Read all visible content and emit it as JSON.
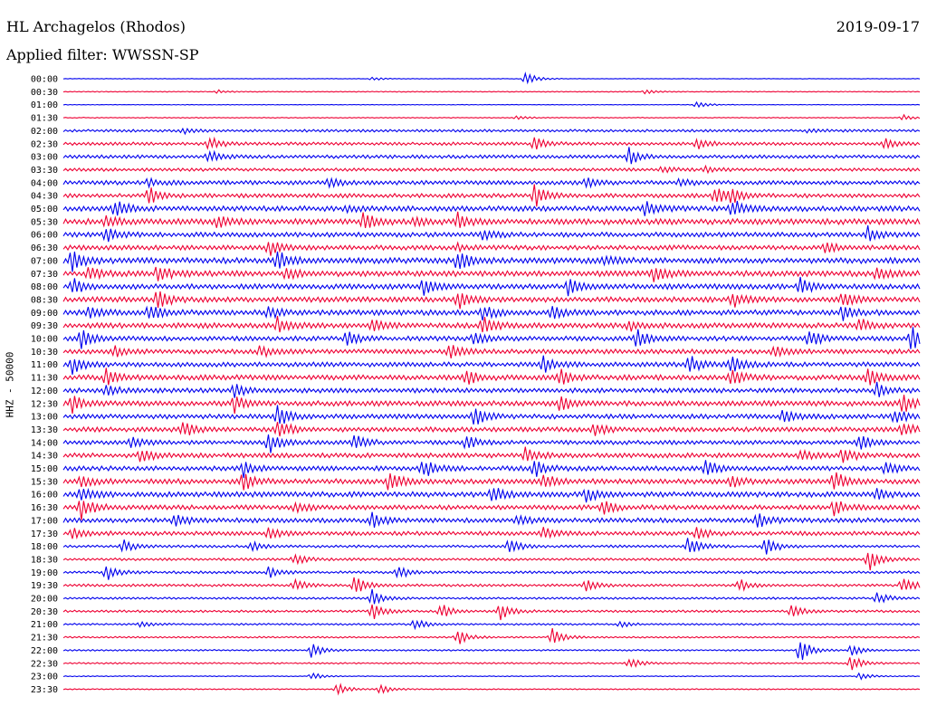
{
  "header": {
    "station": "HL Archagelos (Rhodos)",
    "date": "2019-09-17",
    "filter_label": "Applied filter: WWSSN-SP"
  },
  "colors": {
    "even_trace": "#0000ee",
    "odd_trace": "#ee0033"
  },
  "chart_data": {
    "type": "line",
    "title": "HL Archagelos (Rhodos)",
    "subtitle": "Applied filter: WWSSN-SP",
    "ylabel": "HHZ - 50000",
    "xlabel": "",
    "rows": [
      "00:00",
      "00:30",
      "01:00",
      "01:30",
      "02:00",
      "02:30",
      "03:00",
      "03:30",
      "04:00",
      "04:30",
      "05:00",
      "05:30",
      "06:00",
      "06:30",
      "07:00",
      "07:30",
      "08:00",
      "08:30",
      "09:00",
      "09:30",
      "10:00",
      "10:30",
      "11:00",
      "11:30",
      "12:00",
      "12:30",
      "13:00",
      "13:30",
      "14:00",
      "14:30",
      "15:00",
      "15:30",
      "16:00",
      "16:30",
      "17:00",
      "17:30",
      "18:00",
      "18:30",
      "19:00",
      "19:30",
      "20:00",
      "20:30",
      "21:00",
      "21:30",
      "22:00",
      "22:30",
      "23:00",
      "23:30"
    ],
    "noise_level": [
      0.2,
      0.3,
      0.2,
      0.3,
      1.0,
      1.2,
      1.3,
      1.2,
      1.6,
      1.6,
      2.0,
      2.2,
      1.8,
      1.8,
      2.2,
      2.2,
      2.0,
      2.0,
      2.0,
      2.0,
      1.8,
      1.8,
      1.8,
      2.0,
      1.8,
      2.0,
      1.8,
      1.8,
      1.6,
      1.8,
      1.8,
      2.0,
      2.0,
      1.8,
      1.8,
      1.6,
      1.0,
      1.0,
      1.0,
      1.0,
      0.8,
      0.9,
      0.7,
      0.6,
      0.6,
      0.6,
      0.3,
      0.4
    ],
    "events": [
      [
        [
          0.54,
          7
        ],
        [
          0.36,
          2
        ]
      ],
      [
        [
          0.68,
          3
        ],
        [
          0.18,
          2
        ]
      ],
      [
        [
          0.74,
          4
        ]
      ],
      [
        [
          0.53,
          2
        ],
        [
          0.98,
          3
        ]
      ],
      [
        [
          0.14,
          3
        ],
        [
          0.87,
          2
        ]
      ],
      [
        [
          0.17,
          7
        ],
        [
          0.55,
          7
        ],
        [
          0.74,
          5
        ],
        [
          0.96,
          5
        ]
      ],
      [
        [
          0.17,
          6
        ],
        [
          0.66,
          10
        ]
      ],
      [
        [
          0.7,
          3
        ],
        [
          0.75,
          3
        ]
      ],
      [
        [
          0.1,
          4
        ],
        [
          0.31,
          5
        ],
        [
          0.61,
          5
        ],
        [
          0.72,
          3
        ]
      ],
      [
        [
          0.1,
          8
        ],
        [
          0.55,
          13
        ],
        [
          0.76,
          9
        ],
        [
          0.78,
          7
        ]
      ],
      [
        [
          0.06,
          10
        ],
        [
          0.33,
          3
        ],
        [
          0.68,
          8
        ],
        [
          0.78,
          10
        ]
      ],
      [
        [
          0.05,
          6
        ],
        [
          0.35,
          10
        ],
        [
          0.41,
          4
        ],
        [
          0.46,
          8
        ],
        [
          0.18,
          5
        ]
      ],
      [
        [
          0.05,
          9
        ],
        [
          0.49,
          6
        ],
        [
          0.94,
          9
        ]
      ],
      [
        [
          0.24,
          8
        ],
        [
          0.46,
          3
        ],
        [
          0.89,
          6
        ]
      ],
      [
        [
          0.01,
          10
        ],
        [
          0.25,
          12
        ],
        [
          0.46,
          10
        ],
        [
          0.63,
          5
        ]
      ],
      [
        [
          0.03,
          6
        ],
        [
          0.11,
          8
        ],
        [
          0.26,
          6
        ],
        [
          0.69,
          8
        ],
        [
          0.95,
          5
        ]
      ],
      [
        [
          0.01,
          8
        ],
        [
          0.42,
          9
        ],
        [
          0.59,
          9
        ],
        [
          0.86,
          8
        ]
      ],
      [
        [
          0.11,
          10
        ],
        [
          0.46,
          10
        ],
        [
          0.78,
          8
        ],
        [
          0.91,
          7
        ]
      ],
      [
        [
          0.03,
          6
        ],
        [
          0.1,
          9
        ],
        [
          0.24,
          6
        ],
        [
          0.49,
          9
        ],
        [
          0.57,
          7
        ],
        [
          0.91,
          8
        ]
      ],
      [
        [
          0.25,
          8
        ],
        [
          0.36,
          7
        ],
        [
          0.49,
          10
        ],
        [
          0.66,
          5
        ],
        [
          0.93,
          6
        ]
      ],
      [
        [
          0.02,
          10
        ],
        [
          0.33,
          9
        ],
        [
          0.48,
          6
        ],
        [
          0.67,
          10
        ],
        [
          0.87,
          10
        ],
        [
          0.99,
          12
        ]
      ],
      [
        [
          0.06,
          5
        ],
        [
          0.23,
          6
        ],
        [
          0.45,
          8
        ],
        [
          0.83,
          7
        ]
      ],
      [
        [
          0.01,
          10
        ],
        [
          0.56,
          9
        ],
        [
          0.73,
          9
        ],
        [
          0.78,
          9
        ]
      ],
      [
        [
          0.05,
          8
        ],
        [
          0.47,
          9
        ],
        [
          0.58,
          8
        ],
        [
          0.78,
          9
        ],
        [
          0.94,
          9
        ]
      ],
      [
        [
          0.05,
          6
        ],
        [
          0.2,
          7
        ],
        [
          0.95,
          7
        ]
      ],
      [
        [
          0.01,
          9
        ],
        [
          0.2,
          8
        ],
        [
          0.58,
          8
        ],
        [
          0.98,
          9
        ]
      ],
      [
        [
          0.25,
          12
        ],
        [
          0.48,
          10
        ],
        [
          0.84,
          8
        ],
        [
          0.97,
          8
        ]
      ],
      [
        [
          0.14,
          8
        ],
        [
          0.25,
          10
        ],
        [
          0.62,
          6
        ],
        [
          0.98,
          7
        ]
      ],
      [
        [
          0.08,
          6
        ],
        [
          0.24,
          12
        ],
        [
          0.34,
          8
        ],
        [
          0.47,
          6
        ],
        [
          0.93,
          8
        ]
      ],
      [
        [
          0.09,
          7
        ],
        [
          0.54,
          8
        ],
        [
          0.86,
          6
        ],
        [
          0.91,
          8
        ]
      ],
      [
        [
          0.21,
          8
        ],
        [
          0.42,
          10
        ],
        [
          0.55,
          8
        ],
        [
          0.75,
          9
        ],
        [
          0.96,
          6
        ]
      ],
      [
        [
          0.02,
          6
        ],
        [
          0.21,
          10
        ],
        [
          0.38,
          9
        ],
        [
          0.56,
          7
        ],
        [
          0.78,
          6
        ],
        [
          0.9,
          10
        ]
      ],
      [
        [
          0.02,
          8
        ],
        [
          0.5,
          8
        ],
        [
          0.61,
          7
        ],
        [
          0.95,
          6
        ]
      ],
      [
        [
          0.02,
          12
        ],
        [
          0.27,
          5
        ],
        [
          0.63,
          7
        ],
        [
          0.9,
          8
        ]
      ],
      [
        [
          0.13,
          8
        ],
        [
          0.36,
          8
        ],
        [
          0.53,
          5
        ],
        [
          0.81,
          8
        ]
      ],
      [
        [
          0.01,
          6
        ],
        [
          0.24,
          6
        ],
        [
          0.56,
          6
        ],
        [
          0.74,
          6
        ]
      ],
      [
        [
          0.07,
          7
        ],
        [
          0.22,
          5
        ],
        [
          0.52,
          8
        ],
        [
          0.73,
          10
        ],
        [
          0.82,
          9
        ]
      ],
      [
        [
          0.27,
          6
        ],
        [
          0.94,
          12
        ]
      ],
      [
        [
          0.05,
          8
        ],
        [
          0.24,
          6
        ],
        [
          0.39,
          7
        ]
      ],
      [
        [
          0.27,
          6
        ],
        [
          0.34,
          9
        ],
        [
          0.61,
          6
        ],
        [
          0.79,
          6
        ],
        [
          0.98,
          8
        ]
      ],
      [
        [
          0.36,
          9
        ],
        [
          0.95,
          7
        ]
      ],
      [
        [
          0.36,
          10
        ],
        [
          0.44,
          8
        ],
        [
          0.51,
          9
        ],
        [
          0.85,
          7
        ]
      ],
      [
        [
          0.09,
          3
        ],
        [
          0.41,
          6
        ],
        [
          0.65,
          3
        ]
      ],
      [
        [
          0.46,
          9
        ],
        [
          0.57,
          10
        ]
      ],
      [
        [
          0.29,
          8
        ],
        [
          0.86,
          14
        ],
        [
          0.92,
          6
        ]
      ],
      [
        [
          0.66,
          6
        ],
        [
          0.92,
          8
        ]
      ],
      [
        [
          0.29,
          4
        ],
        [
          0.93,
          4
        ]
      ],
      [
        [
          0.32,
          6
        ],
        [
          0.37,
          6
        ]
      ]
    ]
  }
}
